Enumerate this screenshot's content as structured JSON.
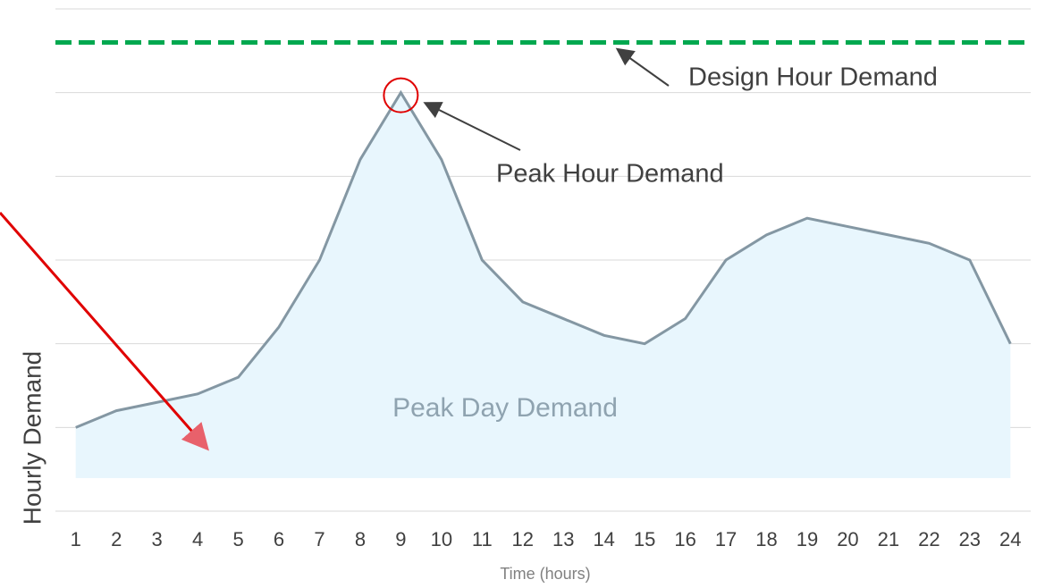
{
  "chart_data": {
    "type": "line",
    "categories": [
      "1",
      "2",
      "3",
      "4",
      "5",
      "6",
      "7",
      "8",
      "9",
      "10",
      "11",
      "12",
      "13",
      "14",
      "15",
      "16",
      "17",
      "18",
      "19",
      "20",
      "21",
      "22",
      "23",
      "24"
    ],
    "series": [
      {
        "name": "Peak Day Demand",
        "color": "#8497a3",
        "fill": "#e8f6fd",
        "values": [
          1.0,
          1.2,
          1.3,
          1.4,
          1.6,
          2.2,
          3.0,
          4.2,
          5.0,
          4.2,
          3.0,
          2.5,
          2.3,
          2.1,
          2.0,
          2.3,
          3.0,
          3.3,
          3.5,
          3.4,
          3.3,
          3.2,
          3.0,
          2.0
        ]
      }
    ],
    "design_hour": {
      "label": "Design Hour Demand",
      "value": 5.6,
      "color": "#00a84f"
    },
    "peak_hour_label": "Peak Hour Demand",
    "ylabel": "Hourly Demand",
    "xlabel": "Time (hours)",
    "ylim": [
      0,
      6
    ],
    "yticks": [
      0,
      1,
      2,
      3,
      4,
      5,
      6
    ],
    "grid": true
  }
}
